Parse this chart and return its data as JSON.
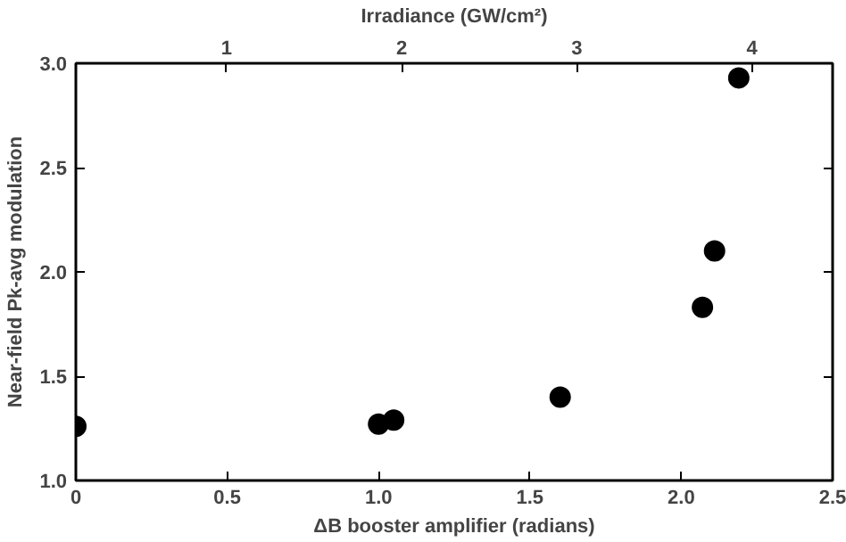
{
  "chart_data": {
    "type": "scatter",
    "xlabel": "ΔB booster amplifier (radians)",
    "ylabel": "Near-field Pk-avg modulation",
    "x2label": "Irradiance (GW/cm²)",
    "x": [
      0,
      1.0,
      1.05,
      1.6,
      2.07,
      2.11,
      2.19
    ],
    "series": [
      {
        "color": "#000000",
        "values": [
          1.26,
          1.27,
          1.29,
          1.4,
          1.83,
          2.1,
          2.93
        ]
      }
    ],
    "xlim": [
      0,
      2.5
    ],
    "xticks": [
      0,
      0.5,
      {
        "value": 1,
        "label": "1.0"
      },
      1.5,
      {
        "value": 2,
        "label": "2.0"
      },
      2.5
    ],
    "ylim": [
      1.0,
      3.0
    ],
    "yticks": [
      {
        "value": 1,
        "label": "1.0"
      },
      1.5,
      {
        "value": 2,
        "label": "2.0"
      },
      2.5,
      {
        "value": 3,
        "label": "3.0"
      }
    ],
    "x2lim": [
      0.14,
      4.46
    ],
    "x2ticks": [
      1,
      2,
      3,
      4
    ],
    "marker": "circle",
    "grid": false
  }
}
